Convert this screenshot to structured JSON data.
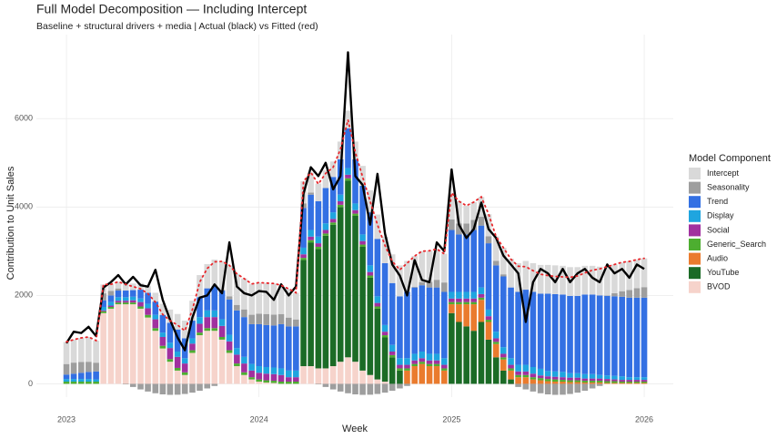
{
  "chart_data": {
    "type": "bar",
    "stacked": true,
    "title": "Full Model Decomposition — Including Intercept",
    "subtitle": "Baseline + structural drivers + media | Actual (black) vs Fitted (red)",
    "x_label": "Week",
    "y_label": "Contribution to Unit Sales",
    "legend_title": "Model Component",
    "legend_position": "right",
    "grid": true,
    "xlim": [
      2022.844,
      2026.151
    ],
    "xticks": [
      2023,
      2024,
      2025,
      2026
    ],
    "ylim": [
      -300,
      7900
    ],
    "yticks": [
      0,
      2000,
      4000,
      6000
    ],
    "x": [
      2023,
      2023.038,
      2023.077,
      2023.115,
      2023.154,
      2023.192,
      2023.231,
      2023.269,
      2023.308,
      2023.346,
      2023.385,
      2023.423,
      2023.462,
      2023.5,
      2023.538,
      2023.577,
      2023.615,
      2023.654,
      2023.692,
      2023.731,
      2023.769,
      2023.808,
      2023.846,
      2023.885,
      2023.923,
      2023.962,
      2024,
      2024.038,
      2024.077,
      2024.115,
      2024.154,
      2024.192,
      2024.231,
      2024.269,
      2024.308,
      2024.346,
      2024.385,
      2024.423,
      2024.462,
      2024.5,
      2024.538,
      2024.577,
      2024.615,
      2024.654,
      2024.692,
      2024.731,
      2024.769,
      2024.808,
      2024.846,
      2024.885,
      2024.923,
      2024.962,
      2025,
      2025.038,
      2025.077,
      2025.115,
      2025.154,
      2025.192,
      2025.231,
      2025.269,
      2025.308,
      2025.346,
      2025.385,
      2025.423,
      2025.462,
      2025.5,
      2025.538,
      2025.577,
      2025.615,
      2025.654,
      2025.692,
      2025.731,
      2025.769,
      2025.808,
      2025.846,
      2025.885,
      2025.923,
      2025.962,
      2026
    ],
    "series": [
      {
        "name": "Intercept",
        "color": "#d9d9d9",
        "values": [
          500,
          520,
          540,
          560,
          500,
          200,
          150,
          150,
          150,
          150,
          150,
          150,
          200,
          250,
          300,
          350,
          400,
          450,
          500,
          550,
          600,
          650,
          700,
          700,
          700,
          700,
          700,
          700,
          700,
          650,
          650,
          600,
          500,
          450,
          400,
          400,
          350,
          400,
          400,
          400,
          450,
          500,
          550,
          600,
          650,
          700,
          700,
          700,
          700,
          700,
          700,
          650,
          600,
          500,
          400,
          400,
          450,
          500,
          550,
          600,
          650,
          650,
          650,
          650,
          650,
          650,
          650,
          650,
          650,
          650,
          650,
          650,
          650,
          650,
          650,
          650,
          650,
          650,
          650
        ]
      },
      {
        "name": "Seasonality",
        "color": "#9e9e9e",
        "values": [
          238,
          250,
          246,
          229,
          199,
          157,
          104,
          48,
          -12,
          -71,
          -126,
          -174,
          -213,
          -238,
          -249,
          -246,
          -229,
          -199,
          -156,
          -104,
          -48,
          12,
          71,
          126,
          174,
          213,
          238,
          250,
          246,
          229,
          199,
          157,
          104,
          48,
          -12,
          -71,
          -126,
          -174,
          -213,
          -238,
          -249,
          -246,
          -229,
          -199,
          -156,
          -104,
          -48,
          12,
          71,
          126,
          174,
          213,
          238,
          250,
          246,
          229,
          199,
          157,
          104,
          48,
          -12,
          -71,
          -126,
          -174,
          -213,
          -238,
          -249,
          -246,
          -229,
          -199,
          -156,
          -104,
          -48,
          12,
          71,
          126,
          174,
          213,
          238
        ]
      },
      {
        "name": "Trend",
        "color": "#3370e3",
        "values": [
          100,
          120,
          140,
          160,
          180,
          150,
          150,
          150,
          150,
          150,
          200,
          250,
          300,
          400,
          450,
          500,
          450,
          400,
          450,
          500,
          550,
          650,
          800,
          850,
          900,
          900,
          950,
          950,
          950,
          1000,
          1000,
          1000,
          900,
          800,
          800,
          800,
          800,
          800,
          900,
          1000,
          1100,
          1200,
          1300,
          1400,
          1400,
          1400,
          1500,
          1500,
          1500,
          1500,
          1500,
          1500,
          1400,
          1300,
          1300,
          1400,
          1400,
          1500,
          1500,
          1600,
          1600,
          1650,
          1700,
          1700,
          1700,
          1750,
          1750,
          1750,
          1750,
          1750,
          1800,
          1800,
          1800,
          1800,
          1800,
          1800,
          1800,
          1800,
          1800
        ]
      },
      {
        "name": "Display",
        "color": "#1fa5df",
        "values": [
          60,
          60,
          60,
          60,
          50,
          80,
          80,
          80,
          80,
          80,
          80,
          100,
          100,
          100,
          120,
          120,
          120,
          120,
          150,
          150,
          150,
          150,
          150,
          150,
          150,
          150,
          150,
          150,
          150,
          150,
          150,
          150,
          150,
          150,
          150,
          150,
          150,
          150,
          150,
          150,
          150,
          150,
          150,
          150,
          150,
          150,
          150,
          150,
          150,
          150,
          150,
          150,
          150,
          150,
          150,
          150,
          150,
          150,
          150,
          150,
          150,
          150,
          150,
          150,
          150,
          120,
          120,
          120,
          100,
          100,
          100,
          100,
          80,
          80,
          80,
          80,
          60,
          60,
          60
        ]
      },
      {
        "name": "Social",
        "color": "#a1309f",
        "values": [
          0,
          0,
          0,
          0,
          0,
          20,
          30,
          40,
          40,
          50,
          100,
          150,
          200,
          200,
          250,
          250,
          200,
          150,
          200,
          250,
          250,
          250,
          200,
          200,
          200,
          150,
          150,
          150,
          150,
          150,
          100,
          100,
          80,
          80,
          80,
          80,
          80,
          80,
          80,
          80,
          80,
          80,
          80,
          80,
          80,
          80,
          80,
          80,
          80,
          80,
          80,
          80,
          80,
          80,
          80,
          80,
          80,
          80,
          80,
          80,
          80,
          80,
          80,
          80,
          60,
          60,
          60,
          60,
          60,
          60,
          50,
          50,
          50,
          50,
          40,
          40,
          40,
          40,
          40
        ]
      },
      {
        "name": "Generic_Search",
        "color": "#4dae30",
        "values": [
          50,
          50,
          50,
          50,
          50,
          40,
          40,
          40,
          40,
          40,
          50,
          60,
          60,
          60,
          60,
          60,
          60,
          60,
          60,
          60,
          60,
          60,
          60,
          60,
          60,
          50,
          50,
          50,
          50,
          50,
          50,
          50,
          50,
          50,
          50,
          50,
          50,
          50,
          50,
          50,
          50,
          50,
          50,
          50,
          50,
          50,
          50,
          50,
          50,
          50,
          50,
          50,
          50,
          50,
          50,
          50,
          50,
          50,
          50,
          50,
          50,
          50,
          50,
          50,
          50,
          50,
          50,
          40,
          40,
          40,
          40,
          40,
          40,
          40,
          40,
          30,
          30,
          30,
          30
        ]
      },
      {
        "name": "Audio",
        "color": "#ea7b2e",
        "values": [
          0,
          0,
          0,
          0,
          0,
          0,
          0,
          0,
          0,
          0,
          0,
          0,
          0,
          0,
          0,
          0,
          0,
          0,
          0,
          0,
          0,
          0,
          0,
          0,
          0,
          0,
          0,
          0,
          0,
          0,
          0,
          0,
          0,
          0,
          0,
          0,
          0,
          0,
          0,
          0,
          0,
          0,
          0,
          0,
          0,
          0,
          300,
          400,
          450,
          400,
          400,
          300,
          200,
          400,
          500,
          600,
          500,
          400,
          300,
          250,
          200,
          150,
          150,
          100,
          80,
          60,
          50,
          50,
          40,
          40,
          30,
          30,
          30,
          20,
          20,
          20,
          20,
          20,
          20
        ]
      },
      {
        "name": "YouTube",
        "color": "#1b6b26",
        "values": [
          0,
          0,
          0,
          0,
          0,
          0,
          0,
          0,
          0,
          0,
          0,
          0,
          0,
          0,
          0,
          0,
          0,
          0,
          0,
          0,
          0,
          0,
          0,
          0,
          0,
          0,
          0,
          0,
          0,
          0,
          0,
          0,
          2400,
          2800,
          2700,
          3000,
          3200,
          3500,
          4000,
          3300,
          2800,
          2200,
          1600,
          1000,
          600,
          300,
          0,
          0,
          0,
          0,
          0,
          0,
          1600,
          1400,
          1300,
          1200,
          1400,
          1000,
          600,
          300,
          100,
          0,
          0,
          0,
          0,
          0,
          0,
          0,
          0,
          0,
          0,
          0,
          0,
          0,
          0,
          0,
          0,
          0,
          0
        ]
      },
      {
        "name": "BVOD",
        "color": "#f6d3cb",
        "values": [
          0,
          0,
          0,
          0,
          0,
          1600,
          1700,
          1800,
          1800,
          1800,
          1700,
          1500,
          1200,
          800,
          500,
          300,
          200,
          700,
          1100,
          1200,
          1200,
          1000,
          700,
          400,
          200,
          100,
          50,
          30,
          20,
          0,
          0,
          0,
          400,
          400,
          350,
          350,
          400,
          500,
          600,
          500,
          300,
          200,
          100,
          50,
          0,
          0,
          0,
          0,
          0,
          0,
          0,
          0,
          0,
          0,
          0,
          0,
          0,
          0,
          0,
          0,
          0,
          0,
          0,
          0,
          0,
          0,
          0,
          0,
          0,
          0,
          0,
          0,
          0,
          0,
          0,
          0,
          0,
          0,
          0
        ]
      }
    ],
    "actual_color": "#000000",
    "actual": [
      920,
      1180,
      1150,
      1290,
      1080,
      2180,
      2300,
      2460,
      2250,
      2420,
      2230,
      2200,
      2580,
      1900,
      1450,
      1050,
      760,
      1500,
      1950,
      2000,
      2250,
      2050,
      3200,
      2200,
      2050,
      2000,
      2100,
      2080,
      1900,
      2250,
      2000,
      2200,
      4300,
      4900,
      4700,
      5000,
      4400,
      4700,
      7500,
      4700,
      4500,
      3600,
      4750,
      3400,
      2700,
      2450,
      2000,
      2800,
      2350,
      2300,
      3200,
      3000,
      4850,
      3600,
      3300,
      3500,
      4100,
      3500,
      3300,
      2900,
      2700,
      2500,
      1400,
      2300,
      2600,
      2500,
      2300,
      2600,
      2300,
      2500,
      2600,
      2400,
      2300,
      2700,
      2500,
      2600,
      2400,
      2700,
      2600
    ],
    "fitted_color": "#e8262a",
    "fitted": [
      950,
      1000,
      1040,
      1060,
      980,
      2250,
      2250,
      2310,
      2250,
      2200,
      2150,
      2040,
      1850,
      1570,
      1430,
      1330,
      1200,
      1680,
      2300,
      2610,
      2760,
      2770,
      2680,
      2490,
      2380,
      2260,
      2290,
      2280,
      2270,
      2230,
      2150,
      2060,
      4580,
      4780,
      4520,
      4760,
      4900,
      5310,
      5970,
      5240,
      4680,
      4130,
      3600,
      3130,
      2770,
      2580,
      2730,
      2890,
      3000,
      3010,
      3050,
      2940,
      4320,
      4130,
      4030,
      4110,
      4230,
      3840,
      3330,
      3080,
      2820,
      2660,
      2650,
      2560,
      2480,
      2450,
      2430,
      2420,
      2410,
      2440,
      2510,
      2570,
      2600,
      2650,
      2700,
      2750,
      2770,
      2810,
      2840
    ]
  }
}
